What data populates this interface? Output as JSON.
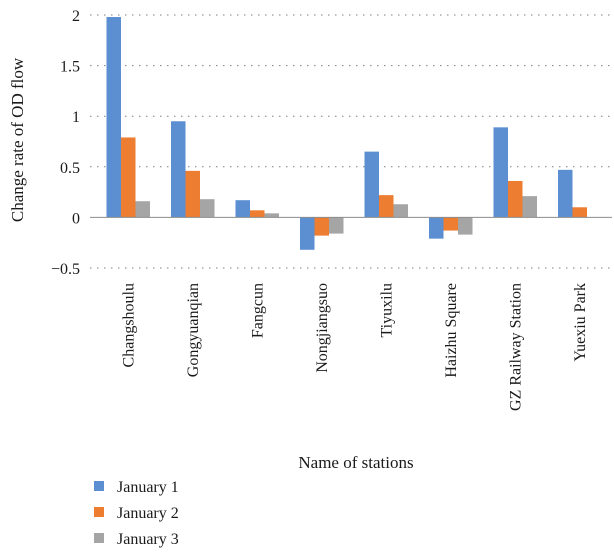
{
  "chart_data": {
    "type": "bar",
    "title": "",
    "xlabel": "Name of stations",
    "ylabel": "Change rate of OD flow",
    "ylim": [
      -0.5,
      2
    ],
    "yticks": [
      -0.5,
      0,
      0.5,
      1,
      1.5,
      2
    ],
    "ytick_labels": [
      "−0.5",
      "0",
      "0.5",
      "1",
      "1.5",
      "2"
    ],
    "grid": "horizontal dotted",
    "legend_position": "bottom-left",
    "categories": [
      "Changshoulu",
      "Gongyuanqian",
      "Fangcun",
      "Nongjiangsuo",
      "Tiyuxilu",
      "Haizhu Square",
      "GZ Railway Station",
      "Yuexiu Park"
    ],
    "series": [
      {
        "name": "January 1",
        "color": "#5b8fd1",
        "values": [
          1.98,
          0.95,
          0.17,
          -0.32,
          0.65,
          -0.21,
          0.89,
          0.47
        ]
      },
      {
        "name": "January 2",
        "color": "#ed7d31",
        "values": [
          0.79,
          0.46,
          0.07,
          -0.18,
          0.22,
          -0.13,
          0.36,
          0.1
        ]
      },
      {
        "name": "January 3",
        "color": "#a5a5a5",
        "values": [
          0.16,
          0.18,
          0.04,
          -0.16,
          0.13,
          -0.17,
          0.21,
          0.0
        ]
      }
    ]
  }
}
